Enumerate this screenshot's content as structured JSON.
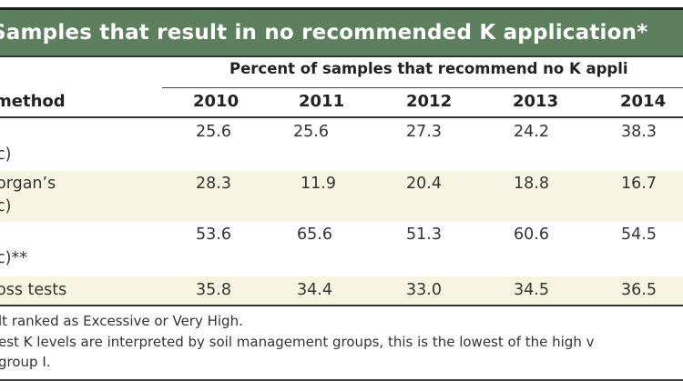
{
  "title": "Samples that result in no recommended K application*",
  "super_header": "Percent of samples that recommend no K appli",
  "header": {
    "label": "method",
    "years": [
      "2010",
      "2011",
      "2012",
      "2013",
      "2014"
    ]
  },
  "rows": [
    {
      "label_lines": [
        "",
        "c)"
      ],
      "values": [
        "25.6",
        "25.6",
        "27.3",
        "24.2",
        "38.3"
      ]
    },
    {
      "label_lines": [
        "organ’s",
        "c)"
      ],
      "values": [
        "28.3",
        "11.9",
        "20.4",
        "18.8",
        "16.7"
      ]
    },
    {
      "label_lines": [
        "",
        "c)**"
      ],
      "values": [
        "53.6",
        "65.6",
        "51.3",
        "60.6",
        "54.5"
      ]
    },
    {
      "label_lines": [
        "oss tests"
      ],
      "values": [
        "35.8",
        "34.4",
        "33.0",
        "34.5",
        "36.5"
      ]
    }
  ],
  "footnotes": [
    "lt ranked as Excessive or Very High.",
    "est K levels are interpreted by soil management groups, this is the lowest of the high v",
    "group I."
  ],
  "colors": {
    "title_bg": "#5d7f5d",
    "shade": "#f8f4e2"
  }
}
